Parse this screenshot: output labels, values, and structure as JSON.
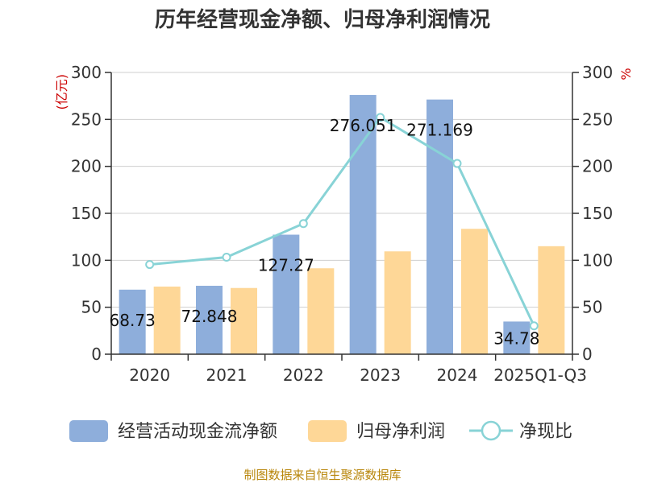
{
  "chart_data": {
    "type": "bar",
    "title": "历年经营现金净额、归母净利润情况",
    "categories": [
      "2020",
      "2021",
      "2022",
      "2023",
      "2024",
      "2025Q1-Q3"
    ],
    "series": [
      {
        "name": "经营活动现金流净额",
        "kind": "bar",
        "axis": "left",
        "color": "#8eaedb",
        "values": [
          68.73,
          72.848,
          127.27,
          276.051,
          271.169,
          34.78
        ],
        "labels": [
          "68.73",
          "72.848",
          "127.27",
          "276.051",
          "271.169",
          "34.78"
        ]
      },
      {
        "name": "归母净利润",
        "kind": "bar",
        "axis": "left",
        "color": "#fed797",
        "values": [
          72,
          70.5,
          91.5,
          109.5,
          133.5,
          115
        ]
      },
      {
        "name": "净现比",
        "kind": "line",
        "axis": "right",
        "color": "#88d3d6",
        "values": [
          95.5,
          103.3,
          139.1,
          252.1,
          203.1,
          30.2
        ]
      }
    ],
    "y_left": {
      "unit": "(亿元)",
      "ylim": [
        0,
        300
      ],
      "ticks": [
        "0",
        "50",
        "100",
        "150",
        "200",
        "250",
        "300"
      ]
    },
    "y_right": {
      "unit": "%",
      "ylim": [
        0,
        300
      ],
      "ticks": [
        "0",
        "50",
        "100",
        "150",
        "200",
        "250",
        "300"
      ]
    },
    "grid": true,
    "legend_position": "bottom",
    "source": "制图数据来自恒生聚源数据库"
  }
}
